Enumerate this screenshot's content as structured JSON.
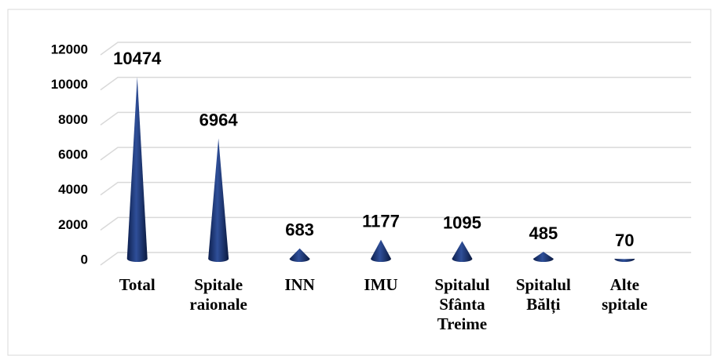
{
  "chart_data": {
    "type": "cone",
    "categories": [
      "Total",
      "Spitale raionale",
      "INN",
      "IMU",
      "Spitalul Sfânta Treime",
      "Spitalul Bălți",
      "Alte spitale"
    ],
    "values": [
      10474,
      6964,
      683,
      1177,
      1095,
      485,
      70
    ],
    "color": "#1f3a7a",
    "ylim": [
      0,
      12000
    ],
    "yticks": [
      0,
      2000,
      4000,
      6000,
      8000,
      10000,
      12000
    ],
    "grid": true
  }
}
